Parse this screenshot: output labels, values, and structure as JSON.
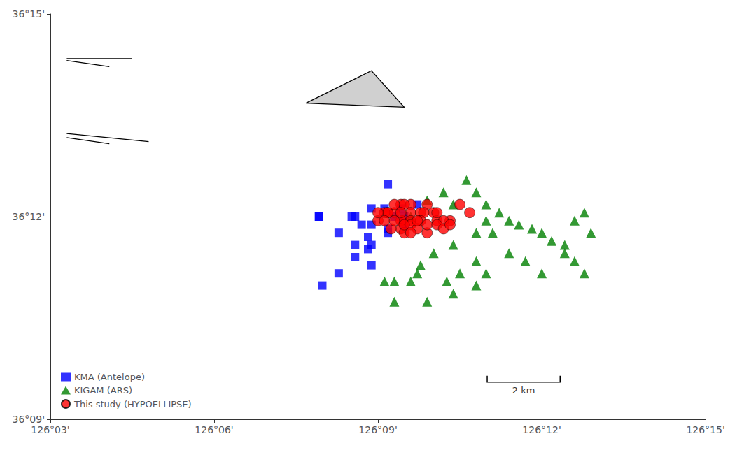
{
  "chart_data": {
    "type": "scatter",
    "xlim": [
      126.05,
      126.25
    ],
    "ylim": [
      36.15,
      36.25
    ],
    "xticks": [
      {
        "value": 126.05,
        "label": "126°03'"
      },
      {
        "value": 126.1,
        "label": "126°06'"
      },
      {
        "value": 126.15,
        "label": "126°09'"
      },
      {
        "value": 126.2,
        "label": "126°12'"
      },
      {
        "value": 126.25,
        "label": "126°15'"
      }
    ],
    "yticks": [
      {
        "value": 36.15,
        "label": "36°09'"
      },
      {
        "value": 36.2,
        "label": "36°12'"
      },
      {
        "value": 36.25,
        "label": "36°15'"
      }
    ],
    "grid": false,
    "legend": "lower left",
    "series": [
      {
        "name": "KMA (Antelope)",
        "type": "scatter",
        "marker": "square",
        "color": "#0000ff",
        "x": [
          126.153,
          126.148,
          126.143,
          126.142,
          126.148,
          126.152,
          126.155,
          126.158,
          126.162,
          126.157,
          126.158,
          126.153,
          126.148,
          126.147,
          126.153,
          126.145,
          126.147,
          126.143,
          126.143,
          126.138,
          126.148,
          126.138,
          126.132,
          126.133,
          126.132
        ],
        "values": [
          36.208,
          36.202,
          36.2,
          36.2,
          36.198,
          36.202,
          36.2,
          36.2,
          36.203,
          36.202,
          36.198,
          36.197,
          36.193,
          36.192,
          36.196,
          36.198,
          36.195,
          36.193,
          36.19,
          36.196,
          36.188,
          36.186,
          36.2,
          36.183,
          36.2
        ]
      },
      {
        "name": "KIGAM (ARS)",
        "type": "scatter",
        "marker": "triangle",
        "color": "#008000",
        "x": [
          126.16,
          126.165,
          126.17,
          126.173,
          126.177,
          126.18,
          126.183,
          126.187,
          126.19,
          126.193,
          126.197,
          126.2,
          126.203,
          126.207,
          126.213,
          126.21,
          126.183,
          126.18,
          126.173,
          126.167,
          126.163,
          126.16,
          126.155,
          126.152,
          126.162,
          126.185,
          126.19,
          126.195,
          126.18,
          126.175,
          126.171,
          126.2,
          126.207,
          126.213,
          126.215,
          126.21,
          126.183,
          126.18,
          126.173,
          126.165,
          126.155
        ],
        "values": [
          36.2,
          36.204,
          36.206,
          36.203,
          36.209,
          36.206,
          36.203,
          36.201,
          36.199,
          36.198,
          36.197,
          36.196,
          36.194,
          36.193,
          36.201,
          36.199,
          36.199,
          36.196,
          36.193,
          36.191,
          36.188,
          36.184,
          36.184,
          36.184,
          36.186,
          36.196,
          36.191,
          36.189,
          36.189,
          36.186,
          36.184,
          36.186,
          36.191,
          36.186,
          36.196,
          36.189,
          36.186,
          36.183,
          36.181,
          36.179,
          36.179
        ]
      },
      {
        "name": "This study (HYPOELLIPSE)",
        "type": "scatter",
        "marker": "circle",
        "color": "#ff0000",
        "x": [
          126.153,
          126.157,
          126.16,
          126.158,
          126.155,
          126.152,
          126.15,
          126.16,
          126.163,
          126.165,
          126.167,
          126.168,
          126.158,
          126.155,
          126.153,
          126.15,
          126.152,
          126.157,
          126.16,
          126.164,
          126.163,
          126.157,
          126.154,
          126.158,
          126.16,
          126.162,
          126.168,
          126.172,
          126.175,
          126.178,
          126.17,
          126.165,
          126.16,
          126.158,
          126.162,
          126.165,
          126.168,
          126.17,
          126.172,
          126.155,
          126.157
        ],
        "values": [
          36.201,
          36.203,
          36.203,
          36.199,
          36.201,
          36.201,
          36.199,
          36.201,
          36.201,
          36.203,
          36.201,
          36.199,
          36.203,
          36.203,
          36.201,
          36.201,
          36.199,
          36.199,
          36.199,
          36.201,
          36.199,
          36.197,
          36.197,
          36.196,
          36.198,
          36.197,
          36.201,
          36.199,
          36.203,
          36.201,
          36.199,
          36.196,
          36.196,
          36.198,
          36.199,
          36.198,
          36.198,
          36.197,
          36.198,
          36.199,
          36.201
        ]
      },
      {
        "type": "polygon",
        "color": "#d0d0d0",
        "x": [
          126.128,
          126.148,
          126.158
        ],
        "values": [
          36.228,
          36.236,
          36.227
        ]
      },
      {
        "type": "line",
        "color": "#000000",
        "x": [
          126.055,
          126.075
        ],
        "values": [
          36.239,
          36.239
        ]
      },
      {
        "type": "line",
        "color": "#000000",
        "x": [
          126.055,
          126.068
        ],
        "values": [
          36.2385,
          36.237
        ]
      },
      {
        "type": "line",
        "color": "#000000",
        "x": [
          126.055,
          126.08
        ],
        "values": [
          36.2205,
          36.2185
        ]
      },
      {
        "type": "line",
        "color": "#000000",
        "x": [
          126.055,
          126.068
        ],
        "values": [
          36.2195,
          36.218
        ]
      }
    ],
    "annotations": [
      {
        "text": "2 km",
        "type": "scale_bar",
        "x": [
          126.183333,
          126.205597
        ],
        "y": 36.159167
      }
    ]
  }
}
